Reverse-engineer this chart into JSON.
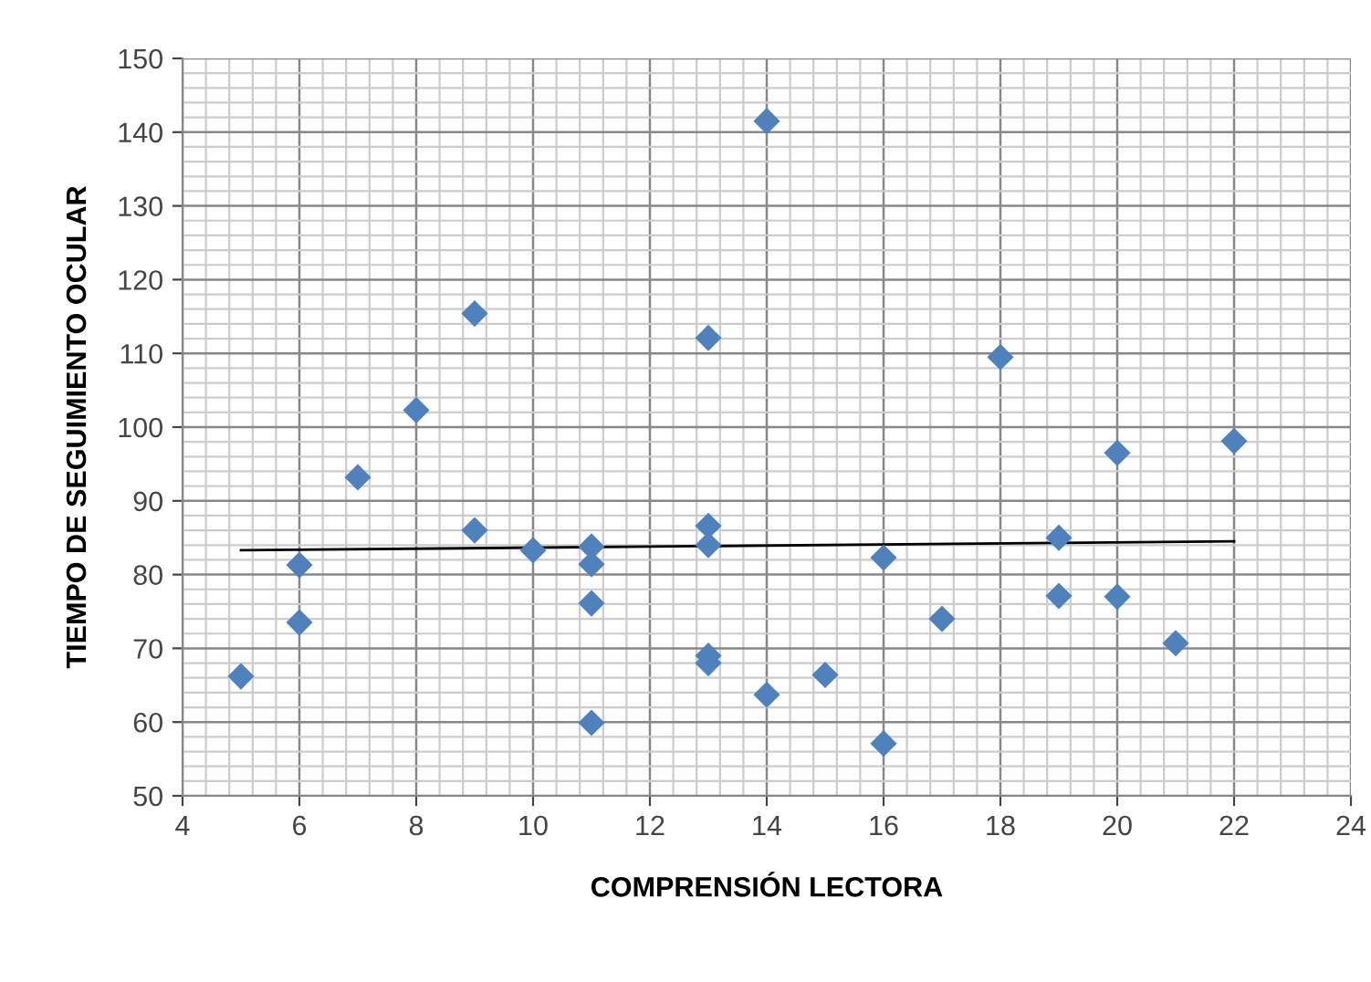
{
  "chart_data": {
    "type": "scatter",
    "xlabel": "COMPRENSIÓN LECTORA",
    "ylabel": "TIEMPO DE SEGUIMIENTO OCULAR",
    "xlim": [
      4,
      24
    ],
    "xticks": [
      4,
      6,
      8,
      10,
      12,
      14,
      16,
      18,
      20,
      22,
      24
    ],
    "ylim": [
      50,
      150
    ],
    "yticks": [
      50,
      60,
      70,
      80,
      90,
      100,
      110,
      120,
      130,
      140,
      150
    ],
    "grid": true,
    "series": [
      {
        "marker": "diamond",
        "color": "#4f81bd",
        "x": [
          5,
          6,
          6,
          7,
          8,
          9,
          9,
          10,
          11,
          11,
          11,
          11,
          13,
          13,
          13,
          13,
          13,
          14,
          14,
          15,
          16,
          16,
          17,
          18,
          19,
          19,
          20,
          20,
          21,
          22
        ],
        "values": [
          66.2,
          81.3,
          73.5,
          93.2,
          102.3,
          115.4,
          86,
          83.3,
          83.8,
          81.4,
          76.1,
          59.9,
          112.1,
          86.6,
          84,
          69,
          68,
          141.5,
          63.7,
          66.4,
          82.3,
          57.1,
          74,
          109.5,
          85,
          77.1,
          96.5,
          77,
          70.7,
          98.1
        ]
      },
      {
        "type": "line",
        "marker": "none",
        "color": "#000000",
        "x": [
          5,
          22
        ],
        "values": [
          83.3,
          84.5
        ]
      }
    ]
  }
}
